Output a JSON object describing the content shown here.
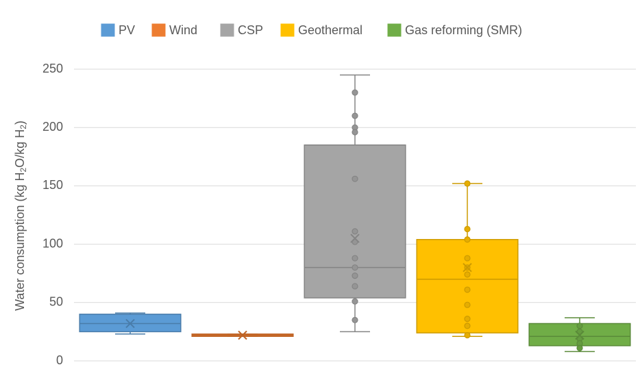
{
  "chart_data": {
    "type": "box",
    "y_label_parts": [
      "Water consumption (kg H",
      "2",
      "O/kg H",
      "2",
      ")"
    ],
    "ylim": [
      0,
      250
    ],
    "yticks": [
      0,
      50,
      100,
      150,
      200,
      250
    ],
    "grid": true,
    "legend": "top",
    "series": [
      {
        "name": "PV",
        "color": "#5b9bd5",
        "min": 23,
        "q1": 25,
        "median": 32,
        "q3": 40,
        "max": 41,
        "mean": 32,
        "points": []
      },
      {
        "name": "Wind",
        "color": "#ed7d31",
        "min": 21,
        "q1": 21,
        "median": 22,
        "q3": 23,
        "max": 23,
        "mean": 22,
        "points": []
      },
      {
        "name": "CSP",
        "color": "#a5a5a5",
        "min": 25,
        "q1": 54,
        "median": 80,
        "q3": 185,
        "max": 245,
        "mean": 105,
        "points": [
          230,
          210,
          200,
          196,
          156,
          111,
          102,
          88,
          80,
          73,
          64,
          51,
          35
        ]
      },
      {
        "name": "Geothermal",
        "color": "#ffc000",
        "min": 21,
        "q1": 24,
        "median": 70,
        "q3": 104,
        "max": 152,
        "mean": 80,
        "points": [
          152,
          113,
          104,
          88,
          80,
          74,
          61,
          48,
          36,
          30,
          22
        ]
      },
      {
        "name": "Gas reforming (SMR)",
        "color": "#70ad47",
        "min": 8,
        "q1": 13,
        "median": 21,
        "q3": 32,
        "max": 37,
        "mean": 22,
        "points": [
          30,
          25,
          19,
          15,
          11
        ]
      }
    ]
  }
}
